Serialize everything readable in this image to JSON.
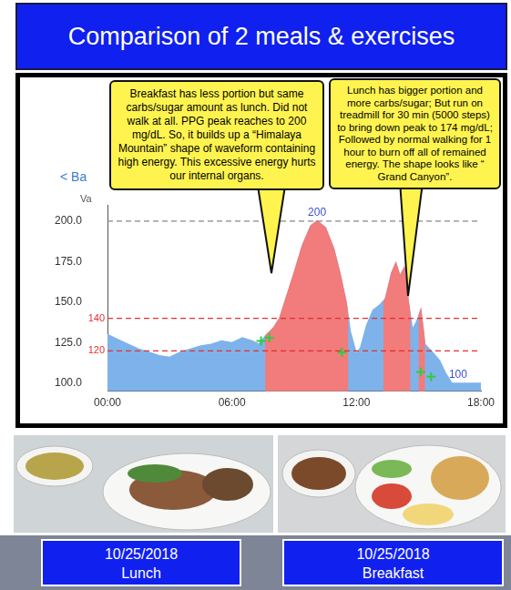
{
  "title": "Comparison of 2 meals & exercises",
  "chart_data": {
    "type": "line",
    "x": [
      0,
      0.5,
      1,
      1.5,
      2,
      2.5,
      3,
      3.5,
      4,
      4.5,
      5,
      5.5,
      6,
      6.5,
      7,
      7.3,
      7.6,
      8,
      8.3,
      8.6,
      9,
      9.4,
      9.8,
      10.1,
      10.5,
      10.9,
      11.2,
      11.5,
      11.7,
      12,
      12.2,
      12.5,
      12.8,
      13.1,
      13.4,
      13.7,
      13.9,
      14.1,
      14.3,
      14.5,
      14.7,
      14.9,
      15.1,
      15.3,
      15.6,
      16,
      16.3,
      16.6,
      17,
      17.5,
      18
    ],
    "values": [
      130,
      127,
      124,
      121,
      119,
      117,
      116,
      119,
      121,
      123,
      124,
      126,
      125,
      128,
      126,
      124,
      129,
      134,
      140,
      152,
      168,
      185,
      197,
      200,
      196,
      183,
      168,
      150,
      132,
      118,
      122,
      136,
      145,
      148,
      152,
      168,
      174,
      166,
      171,
      150,
      133,
      138,
      145,
      124,
      120,
      114,
      106,
      100,
      100,
      100,
      100
    ],
    "color": "#7db3ea",
    "highlights": {
      "color": "#f27b7b",
      "ranges": [
        [
          7.6,
          11.6
        ],
        [
          13.3,
          14.6
        ],
        [
          15.0,
          15.3
        ]
      ]
    },
    "markers": {
      "color": "#2ecc40",
      "marker": "cross",
      "x": [
        7.4,
        7.8,
        11.3,
        15.1,
        15.6
      ],
      "y": [
        126,
        128,
        119,
        107,
        104
      ]
    },
    "point_labels": {
      "color": "#3a4fd0",
      "x": [
        10.1,
        16.9
      ],
      "y": [
        200,
        100
      ]
    },
    "reference_lines": [
      {
        "value": 200,
        "color": "#888888",
        "line_style": "dashed"
      },
      {
        "value": 140,
        "color": "#e03030",
        "line_style": "dashed",
        "label": "140"
      },
      {
        "value": 120,
        "color": "#e03030",
        "line_style": "dashed",
        "label": "120"
      }
    ],
    "xlim": [
      0,
      18
    ],
    "xticks": [
      {
        "value": 0,
        "label": "00:00"
      },
      {
        "value": 6,
        "label": "06:00"
      },
      {
        "value": 12,
        "label": "12:00"
      },
      {
        "value": 18,
        "label": "18:00"
      }
    ],
    "ylim": [
      95,
      210
    ],
    "yticks": [
      {
        "value": 100,
        "label": "100.0"
      },
      {
        "value": 125,
        "label": "125.0"
      },
      {
        "value": 150,
        "label": "150.0"
      },
      {
        "value": 175,
        "label": "175.0"
      },
      {
        "value": 200,
        "label": "200.0"
      }
    ],
    "grid": false,
    "annotations": [
      "Breakfast has less portion but same carbs/sugar amount as lunch.  Did not walk at all.  PPG peak reaches to 200 mg/dL.  So, it builds up a “Himalaya Mountain” shape of waveform containing high energy.  This excessive energy hurts our internal organs.",
      "Lunch has bigger portion and more carbs/sugar; But run on treadmill for 30 min (5000 steps) to bring down peak to 174 mg/dL; Followed by normal walking for 1 hour to burn off all of remained energy. The shape looks like “ Grand Canyon”."
    ],
    "ui_texts": [
      "< Ba",
      "Va"
    ]
  },
  "photos": [
    {
      "date": "10/25/2018",
      "meal": "Lunch"
    },
    {
      "date": "10/25/2018",
      "meal": "Breakfast"
    }
  ]
}
